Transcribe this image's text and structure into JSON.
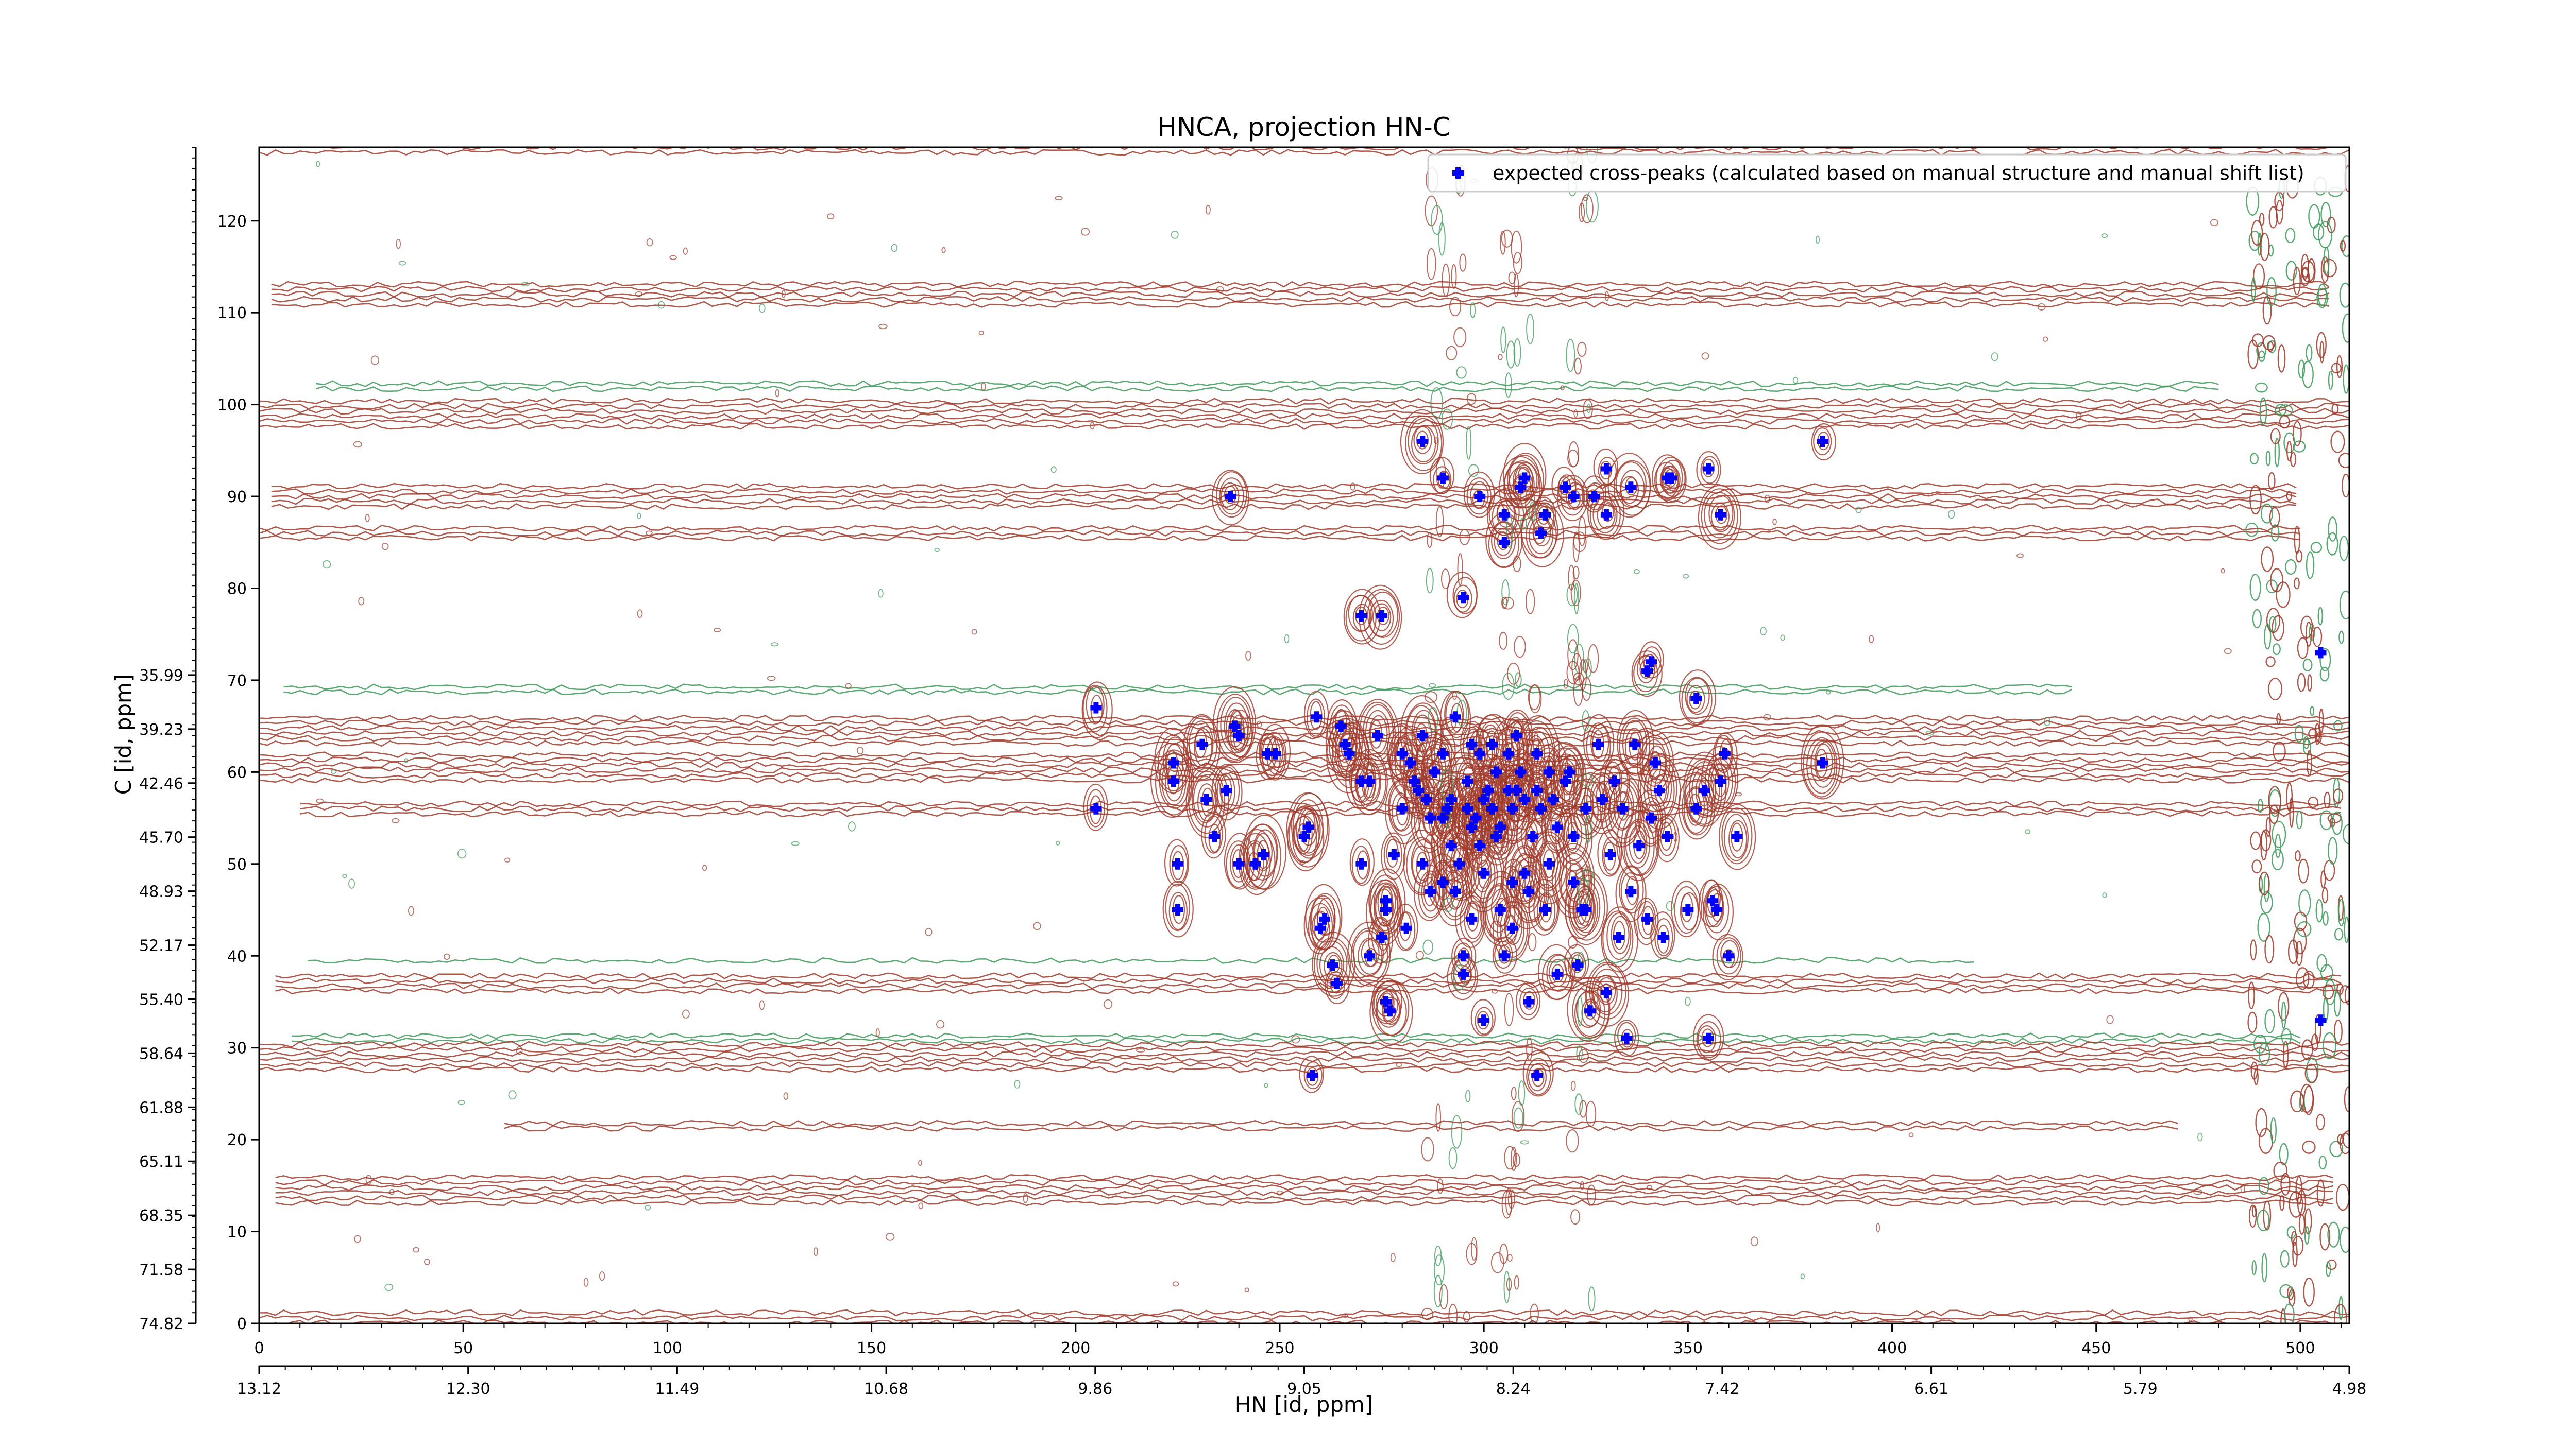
{
  "chart_data": {
    "type": "scatter",
    "title": "HNCA, projection HN-C",
    "xlabel": "HN [id, ppm]",
    "ylabel": "C [id, ppm]",
    "xlim": [
      0,
      512
    ],
    "ylim": [
      0,
      128
    ],
    "x_ticks": [
      "0",
      "50",
      "100",
      "150",
      "200",
      "250",
      "300",
      "350",
      "400",
      "450",
      "500"
    ],
    "y_ticks": [
      "0",
      "10",
      "20",
      "30",
      "40",
      "50",
      "60",
      "70",
      "80",
      "90",
      "100",
      "110",
      "120"
    ],
    "x_ppm_ticks": [
      {
        "at": 0,
        "label": "13.12"
      },
      {
        "at": 51.2,
        "label": "12.30"
      },
      {
        "at": 102.4,
        "label": "11.49"
      },
      {
        "at": 153.6,
        "label": "10.68"
      },
      {
        "at": 204.8,
        "label": "9.86"
      },
      {
        "at": 256,
        "label": "9.05"
      },
      {
        "at": 307.2,
        "label": "8.24"
      },
      {
        "at": 358.4,
        "label": "7.42"
      },
      {
        "at": 409.6,
        "label": "6.61"
      },
      {
        "at": 460.8,
        "label": "5.79"
      },
      {
        "at": 512,
        "label": "4.98"
      }
    ],
    "y_ppm_ticks": [
      {
        "at": 0,
        "label": "74.82"
      },
      {
        "at": 5.88,
        "label": "71.58"
      },
      {
        "at": 11.76,
        "label": "68.35"
      },
      {
        "at": 17.64,
        "label": "65.11"
      },
      {
        "at": 23.52,
        "label": "61.88"
      },
      {
        "at": 29.4,
        "label": "58.64"
      },
      {
        "at": 35.28,
        "label": "55.40"
      },
      {
        "at": 41.16,
        "label": "52.17"
      },
      {
        "at": 47.04,
        "label": "48.93"
      },
      {
        "at": 52.92,
        "label": "45.70"
      },
      {
        "at": 58.8,
        "label": "42.46"
      },
      {
        "at": 64.68,
        "label": "39.23"
      },
      {
        "at": 70.56,
        "label": "35.99"
      }
    ],
    "legend": {
      "location": "top-right",
      "entries": [
        "expected cross-peaks (calculated based on manual structure and manual shift list)"
      ]
    },
    "colors": {
      "positive_contour": "#a03a2a",
      "negative_contour": "#3d9a5a",
      "peak_marker": "#0000ff"
    },
    "series": [
      {
        "name": "expected cross-peaks (calculated based on manual structure and manual shift list)",
        "points": [
          [
            205,
            56
          ],
          [
            205,
            67
          ],
          [
            224,
            61
          ],
          [
            224,
            59
          ],
          [
            225,
            50
          ],
          [
            225,
            45
          ],
          [
            231,
            63
          ],
          [
            232,
            57
          ],
          [
            234,
            53
          ],
          [
            237,
            58
          ],
          [
            238,
            90
          ],
          [
            239,
            65
          ],
          [
            240,
            64
          ],
          [
            240,
            50
          ],
          [
            244,
            50
          ],
          [
            246,
            51
          ],
          [
            247,
            62
          ],
          [
            249,
            62
          ],
          [
            256,
            53
          ],
          [
            257,
            54
          ],
          [
            259,
            66
          ],
          [
            260,
            43
          ],
          [
            261,
            44
          ],
          [
            263,
            39
          ],
          [
            264,
            37
          ],
          [
            265,
            65
          ],
          [
            266,
            63
          ],
          [
            267,
            62
          ],
          [
            270,
            50
          ],
          [
            270,
            59
          ],
          [
            272,
            59
          ],
          [
            274,
            64
          ],
          [
            275,
            42
          ],
          [
            276,
            35
          ],
          [
            276,
            45
          ],
          [
            277,
            34
          ],
          [
            278,
            51
          ],
          [
            280,
            62
          ],
          [
            280,
            56
          ],
          [
            282,
            61
          ],
          [
            283,
            59
          ],
          [
            284,
            58
          ],
          [
            285,
            50
          ],
          [
            285,
            64
          ],
          [
            286,
            57
          ],
          [
            287,
            47
          ],
          [
            287,
            55
          ],
          [
            288,
            60
          ],
          [
            290,
            62
          ],
          [
            290,
            55
          ],
          [
            291,
            56
          ],
          [
            292,
            52
          ],
          [
            292,
            57
          ],
          [
            293,
            66
          ],
          [
            293,
            47
          ],
          [
            294,
            50
          ],
          [
            295,
            40
          ],
          [
            295,
            38
          ],
          [
            296,
            59
          ],
          [
            296,
            56
          ],
          [
            297,
            63
          ],
          [
            297,
            44
          ],
          [
            297,
            54
          ],
          [
            298,
            55
          ],
          [
            299,
            62
          ],
          [
            299,
            52
          ],
          [
            300,
            57
          ],
          [
            300,
            49
          ],
          [
            300,
            33
          ],
          [
            301,
            58
          ],
          [
            302,
            63
          ],
          [
            302,
            56
          ],
          [
            303,
            60
          ],
          [
            303,
            53
          ],
          [
            304,
            54
          ],
          [
            304,
            45
          ],
          [
            305,
            40
          ],
          [
            306,
            58
          ],
          [
            306,
            62
          ],
          [
            307,
            56
          ],
          [
            307,
            48
          ],
          [
            308,
            64
          ],
          [
            308,
            58
          ],
          [
            309,
            91
          ],
          [
            309,
            60
          ],
          [
            310,
            57
          ],
          [
            310,
            49
          ],
          [
            311,
            47
          ],
          [
            311,
            35
          ],
          [
            312,
            53
          ],
          [
            313,
            58
          ],
          [
            313,
            62
          ],
          [
            314,
            56
          ],
          [
            315,
            45
          ],
          [
            316,
            60
          ],
          [
            316,
            50
          ],
          [
            317,
            57
          ],
          [
            318,
            54
          ],
          [
            318,
            38
          ],
          [
            320,
            59
          ],
          [
            320,
            91
          ],
          [
            321,
            60
          ],
          [
            322,
            53
          ],
          [
            322,
            48
          ],
          [
            323,
            39
          ],
          [
            324,
            45
          ],
          [
            325,
            56
          ],
          [
            326,
            34
          ],
          [
            327,
            90
          ],
          [
            328,
            63
          ],
          [
            329,
            57
          ],
          [
            330,
            36
          ],
          [
            331,
            51
          ],
          [
            332,
            59
          ],
          [
            333,
            42
          ],
          [
            334,
            56
          ],
          [
            335,
            31
          ],
          [
            336,
            47
          ],
          [
            337,
            63
          ],
          [
            338,
            52
          ],
          [
            340,
            44
          ],
          [
            341,
            55
          ],
          [
            342,
            61
          ],
          [
            343,
            58
          ],
          [
            344,
            42
          ],
          [
            345,
            92
          ],
          [
            352,
            56
          ],
          [
            354,
            58
          ],
          [
            356,
            46
          ],
          [
            357,
            45
          ],
          [
            358,
            59
          ],
          [
            358,
            88
          ],
          [
            359,
            62
          ],
          [
            360,
            40
          ],
          [
            362,
            53
          ],
          [
            383,
            61
          ],
          [
            290,
            92
          ],
          [
            299,
            90
          ],
          [
            305,
            88
          ],
          [
            310,
            92
          ],
          [
            315,
            88
          ],
          [
            322,
            90
          ],
          [
            330,
            88
          ],
          [
            336,
            91
          ],
          [
            341,
            72
          ],
          [
            346,
            92
          ],
          [
            352,
            68
          ],
          [
            285,
            96
          ],
          [
            383,
            96
          ],
          [
            295,
            79
          ],
          [
            305,
            85
          ],
          [
            314,
            86
          ],
          [
            330,
            93
          ],
          [
            340,
            71
          ],
          [
            270,
            77
          ],
          [
            275,
            77
          ],
          [
            258,
            27
          ],
          [
            313,
            27
          ],
          [
            276,
            46
          ],
          [
            272,
            40
          ],
          [
            281,
            43
          ],
          [
            290,
            48
          ],
          [
            307,
            43
          ],
          [
            325,
            45
          ],
          [
            345,
            53
          ],
          [
            350,
            45
          ],
          [
            505,
            33
          ],
          [
            505,
            73
          ],
          [
            355,
            93
          ],
          [
            355,
            31
          ]
        ]
      }
    ]
  }
}
